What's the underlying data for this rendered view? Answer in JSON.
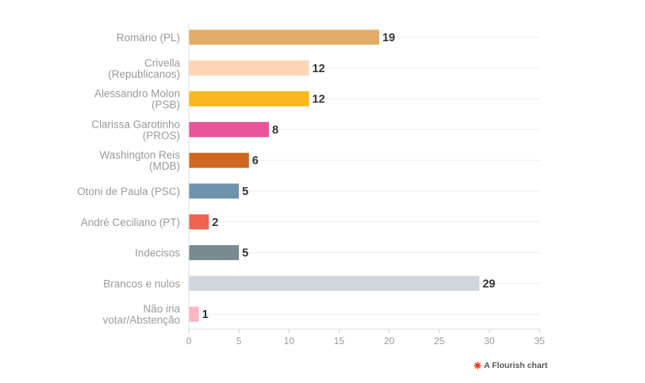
{
  "chart_data": {
    "type": "bar",
    "orientation": "horizontal",
    "categories": [
      "Romário (PL)",
      "Crivella (Republicanos)",
      "Alessandro Molon (PSB)",
      "Clarissa Garotinho (PROS)",
      "Washington Reis (MDB)",
      "Otoni de Paula (PSC)",
      "André Ceciliano (PT)",
      "Indecisos",
      "Brancos e nulos",
      "Não iria votar/Abstenção"
    ],
    "category_lines": [
      [
        "Romário (PL)"
      ],
      [
        "Crivella",
        "(Republicanos)"
      ],
      [
        "Alessandro Molon",
        "(PSB)"
      ],
      [
        "Clarissa Garotinho",
        "(PROS)"
      ],
      [
        "Washington Reis",
        "(MDB)"
      ],
      [
        "Otoni de Paula (PSC)"
      ],
      [
        "André Ceciliano (PT)"
      ],
      [
        "Indecisos"
      ],
      [
        "Brancos e nulos"
      ],
      [
        "Não iria",
        "votar/Abstenção"
      ]
    ],
    "values": [
      19,
      12,
      12,
      8,
      6,
      5,
      2,
      5,
      29,
      1
    ],
    "colors": [
      "#e2ac67",
      "#fcd5b5",
      "#f9b91d",
      "#e85497",
      "#d0671f",
      "#6f93ab",
      "#ef6450",
      "#7a8a91",
      "#cfd7dc",
      "#fdb6c1"
    ],
    "xlim": [
      0,
      35
    ],
    "xticks": [
      0,
      5,
      10,
      15,
      20,
      25,
      30,
      35
    ],
    "grid": true,
    "title": "",
    "xlabel": "",
    "ylabel": ""
  },
  "credit": {
    "text": "A Flourish chart",
    "icon": "flourish-logo-icon",
    "icon_color": "#e8331f"
  }
}
